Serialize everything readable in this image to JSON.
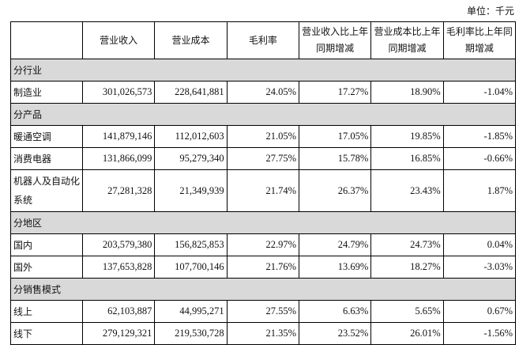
{
  "unit_label": "单位：千元",
  "headers": [
    "",
    "营业收入",
    "营业成本",
    "毛利率",
    "营业收入比上年同期增减",
    "营业成本比上年同期增减",
    "毛利率比上年同期增减"
  ],
  "sections": [
    {
      "title": "分行业",
      "rows": [
        [
          "制造业",
          "301,026,573",
          "228,641,881",
          "24.05%",
          "17.27%",
          "18.90%",
          "-1.04%"
        ]
      ]
    },
    {
      "title": "分产品",
      "rows": [
        [
          "暖通空调",
          "141,879,146",
          "112,012,603",
          "21.05%",
          "17.05%",
          "19.85%",
          "-1.85%"
        ],
        [
          "消费电器",
          "131,866,099",
          "95,279,340",
          "27.75%",
          "15.78%",
          "16.85%",
          "-0.66%"
        ],
        [
          "机器人及自动化系统",
          "27,281,328",
          "21,349,939",
          "21.74%",
          "26.37%",
          "23.43%",
          "1.87%"
        ]
      ]
    },
    {
      "title": "分地区",
      "rows": [
        [
          "国内",
          "203,579,380",
          "156,825,853",
          "22.97%",
          "24.79%",
          "24.73%",
          "0.04%"
        ],
        [
          "国外",
          "137,653,828",
          "107,700,146",
          "21.76%",
          "13.69%",
          "18.27%",
          "-3.03%"
        ]
      ]
    },
    {
      "title": "分销售模式",
      "rows": [
        [
          "线上",
          "62,103,887",
          "44,995,271",
          "27.55%",
          "6.63%",
          "5.65%",
          "0.67%"
        ],
        [
          "线下",
          "279,129,321",
          "219,530,728",
          "21.35%",
          "23.52%",
          "26.01%",
          "-1.56%"
        ]
      ]
    }
  ]
}
